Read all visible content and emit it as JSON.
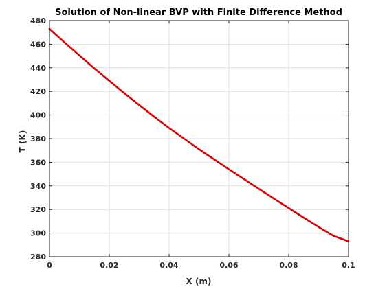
{
  "chart_data": {
    "type": "line",
    "title": "Solution of Non-linear BVP with Finite Difference Method",
    "xlabel": "X (m)",
    "ylabel": "T (K)",
    "xlim": [
      0,
      0.1
    ],
    "ylim": [
      280,
      480
    ],
    "xticks": [
      0,
      0.02,
      0.04,
      0.06,
      0.08,
      0.1
    ],
    "xtick_labels": [
      "0",
      "0.02",
      "0.04",
      "0.06",
      "0.08",
      "0.1"
    ],
    "yticks": [
      280,
      300,
      320,
      340,
      360,
      380,
      400,
      420,
      440,
      460,
      480
    ],
    "ytick_labels": [
      "280",
      "300",
      "320",
      "340",
      "360",
      "380",
      "400",
      "420",
      "440",
      "460",
      "480"
    ],
    "grid": true,
    "legend": "none",
    "series": [
      {
        "color": "#e00000",
        "x": [
          0,
          0.005,
          0.01,
          0.015,
          0.02,
          0.025,
          0.03,
          0.035,
          0.04,
          0.045,
          0.05,
          0.055,
          0.06,
          0.065,
          0.07,
          0.075,
          0.08,
          0.085,
          0.09,
          0.095,
          0.1
        ],
        "y": [
          473,
          461.5,
          450.5,
          439.5,
          429,
          418.5,
          408.5,
          398.5,
          389,
          380,
          371,
          362.5,
          354,
          345.8,
          337.5,
          329.3,
          321.2,
          313.1,
          305.2,
          297.6,
          293
        ]
      }
    ]
  }
}
